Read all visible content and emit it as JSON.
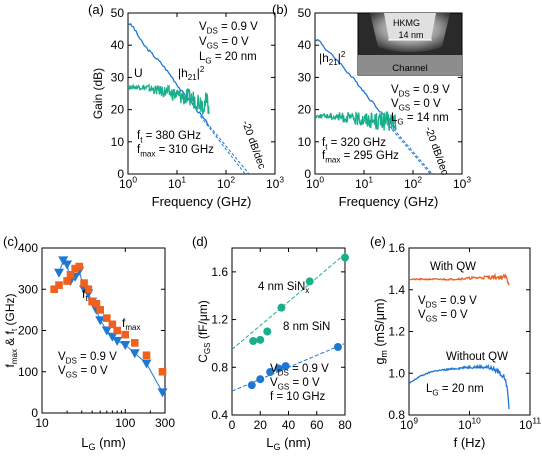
{
  "chart_data": [
    {
      "id": "a",
      "type": "line",
      "panel_label": "(a)",
      "xlabel": "Frequency (GHz)",
      "ylabel": "Gain (dB)",
      "xscale": "log",
      "xlim": [
        1,
        1000
      ],
      "ylim": [
        0,
        50
      ],
      "xticks": [
        1,
        10,
        100,
        1000
      ],
      "xtick_labels": [
        "10",
        "10",
        "10",
        "10"
      ],
      "xtick_exps": [
        "0",
        "1",
        "2",
        "3"
      ],
      "yticks": [
        0,
        10,
        20,
        30,
        40,
        50
      ],
      "ytick_labels": [
        "0",
        "10",
        "20",
        "30",
        "40",
        "50"
      ],
      "legend_lines": [
        {
          "main": "V",
          "sub": "DS",
          "rest": " = 0.9 V"
        },
        {
          "main": "V",
          "sub": "GS",
          "rest": " = 0 V"
        },
        {
          "main": "L",
          "sub": "G",
          "rest": " = 20 nm"
        }
      ],
      "metric_lines": [
        {
          "main": "f",
          "sub": "t",
          "rest": " = 380 GHz"
        },
        {
          "main": "f",
          "sub": "max",
          "rest": " = 310 GHz"
        }
      ],
      "annotations": {
        "U": "U",
        "h21_main": "|h",
        "h21_sub": "21",
        "h21_tail": "|",
        "h21_sup": "2",
        "slope": "-20 dB/dec"
      },
      "series": [
        {
          "name": "|h21|2",
          "color": "#1f77d4",
          "noisy": false,
          "x": [
            1.0,
            1.3,
            1.6,
            2,
            3,
            5,
            8,
            12,
            20,
            30,
            45
          ],
          "y": [
            47.0,
            45.5,
            43,
            40.5,
            37.5,
            34,
            30,
            26,
            22,
            18.5,
            15
          ]
        },
        {
          "name": "U",
          "color": "#1aaf8b",
          "noisy": true,
          "x": [
            1.0,
            2,
            4,
            8,
            12,
            18,
            25,
            35,
            45
          ],
          "y": [
            27,
            27,
            26,
            25,
            24,
            23.5,
            23,
            22,
            22
          ]
        }
      ],
      "extrap": [
        {
          "x": [
            40,
            380
          ],
          "y": [
            16,
            -2
          ]
        },
        {
          "x": [
            30,
            310
          ],
          "y": [
            18,
            -2
          ]
        }
      ]
    },
    {
      "id": "b",
      "type": "line",
      "panel_label": "(b)",
      "xlabel": "Frequency (GHz)",
      "ylabel": "",
      "xscale": "log",
      "xlim": [
        1,
        1000
      ],
      "ylim": [
        0,
        50
      ],
      "xticks": [
        1,
        10,
        100,
        1000
      ],
      "xtick_labels": [
        "10",
        "10",
        "10",
        "10"
      ],
      "xtick_exps": [
        "0",
        "1",
        "2",
        "3"
      ],
      "yticks": [
        0,
        10,
        20,
        30,
        40,
        50
      ],
      "ytick_labels": [
        "0",
        "10",
        "20",
        "30",
        "40",
        "50"
      ],
      "legend_lines": [
        {
          "main": "V",
          "sub": "DS",
          "rest": " = 0.9 V"
        },
        {
          "main": "V",
          "sub": "GS",
          "rest": " = 0 V"
        },
        {
          "main": "L",
          "sub": "G",
          "rest": " = 14 nm"
        }
      ],
      "metric_lines": [
        {
          "main": "f",
          "sub": "t",
          "rest": " = 320 GHz"
        },
        {
          "main": "f",
          "sub": "max",
          "rest": " = 295 GHz"
        }
      ],
      "annotations": {
        "h21_main": "|h",
        "h21_sub": "21",
        "h21_tail": "|",
        "h21_sup": "2",
        "slope": "-20 dB/dec"
      },
      "inset": {
        "hkmg": "HKMG",
        "dim": "14 nm",
        "channel": "Channel"
      },
      "series": [
        {
          "name": "|h21|2",
          "color": "#1f77d4",
          "noisy": false,
          "x": [
            1.0,
            1.3,
            1.6,
            2,
            3,
            5,
            8,
            12,
            20,
            30,
            45
          ],
          "y": [
            42,
            41,
            39,
            37.5,
            35,
            31,
            27.5,
            24,
            20,
            17,
            14
          ]
        },
        {
          "name": "U",
          "color": "#1aaf8b",
          "noisy": true,
          "x": [
            1.0,
            2,
            4,
            8,
            12,
            18,
            25,
            35,
            45
          ],
          "y": [
            18,
            18,
            17.5,
            17,
            17,
            16.5,
            16.5,
            16,
            17
          ]
        }
      ],
      "extrap": [
        {
          "x": [
            40,
            320
          ],
          "y": [
            14,
            -2
          ]
        },
        {
          "x": [
            32,
            295
          ],
          "y": [
            15,
            -2
          ]
        }
      ]
    },
    {
      "id": "c",
      "type": "scatter",
      "panel_label": "(c)",
      "xlabel_main": "L",
      "xlabel_sub": "G",
      "xlabel_rest": " (nm)",
      "ylabel_parts": [
        {
          "main": "f",
          "sub": "max"
        },
        {
          "main": " & f",
          "sub": "t"
        },
        {
          "main": " (GHz)",
          "sub": ""
        }
      ],
      "xscale": "log",
      "xlim": [
        10,
        300
      ],
      "ylim": [
        0,
        400
      ],
      "xticks": [
        10,
        100,
        300
      ],
      "xtick_labels": [
        "10",
        "100",
        "300"
      ],
      "yticks": [
        0,
        100,
        200,
        300,
        400
      ],
      "ytick_labels": [
        "0",
        "100",
        "200",
        "300",
        "400"
      ],
      "legend_lines": [
        {
          "main": "V",
          "sub": "DS",
          "rest": " = 0.9 V"
        },
        {
          "main": "V",
          "sub": "GS",
          "rest": " = 0 V"
        }
      ],
      "series": [
        {
          "name": "f_t",
          "marker": "triangle",
          "color": "#1f77d4",
          "label_main": "f",
          "label_sub": "t",
          "x": [
            16,
            18,
            20,
            22,
            25,
            28,
            32,
            36,
            40,
            45,
            50,
            60,
            70,
            80,
            100,
            130,
            180,
            280
          ],
          "y": [
            340,
            370,
            360,
            320,
            330,
            345,
            300,
            290,
            270,
            250,
            225,
            200,
            185,
            175,
            165,
            145,
            120,
            50
          ]
        },
        {
          "name": "f_max",
          "marker": "square",
          "color": "#f0601e",
          "label_main": "f",
          "label_sub": "max",
          "x": [
            14,
            16,
            20,
            22,
            25,
            28,
            32,
            36,
            40,
            45,
            50,
            60,
            70,
            80,
            100,
            130,
            180,
            280
          ],
          "y": [
            300,
            310,
            320,
            335,
            350,
            355,
            315,
            300,
            270,
            265,
            250,
            230,
            215,
            200,
            190,
            170,
            140,
            100
          ]
        }
      ]
    },
    {
      "id": "d",
      "type": "scatter",
      "panel_label": "(d)",
      "xlabel_main": "L",
      "xlabel_sub": "G",
      "xlabel_rest": " (nm)",
      "ylabel_main": "C",
      "ylabel_sub": "GS",
      "ylabel_rest": " (fF/μm)",
      "xlim": [
        0,
        80
      ],
      "ylim": [
        0.4,
        1.8
      ],
      "xticks": [
        0,
        20,
        40,
        60,
        80
      ],
      "xtick_labels": [
        "0",
        "20",
        "40",
        "60",
        "80"
      ],
      "yticks": [
        0.4,
        0.8,
        1.2,
        1.6
      ],
      "ytick_labels": [
        "0.4",
        "0.8",
        "1.2",
        "1.6"
      ],
      "legend_lines": [
        {
          "main": "V",
          "sub": "DS",
          "rest": " = 0.9 V"
        },
        {
          "main": "V",
          "sub": "GS",
          "rest": " = 0 V"
        },
        {
          "main": "f = 10 GHz",
          "sub": "",
          "rest": ""
        }
      ],
      "series": [
        {
          "name": "4 nm SiNx",
          "color": "#1aaf8b",
          "label_main": "4 nm SiN",
          "label_sub": "x",
          "x": [
            15,
            20,
            25,
            35,
            55,
            80
          ],
          "y": [
            1.02,
            1.03,
            1.1,
            1.3,
            1.52,
            1.72
          ],
          "fit": [
            [
              0,
              0.95
            ],
            [
              80,
              1.75
            ]
          ]
        },
        {
          "name": "8 nm SiN",
          "color": "#1f77d4",
          "label_main": "8 nm SiN",
          "label_sub": "",
          "x": [
            14,
            20,
            27,
            33,
            38,
            75
          ],
          "y": [
            0.65,
            0.7,
            0.76,
            0.79,
            0.81,
            0.97
          ],
          "fit": [
            [
              0,
              0.6
            ],
            [
              80,
              1.0
            ]
          ]
        }
      ]
    },
    {
      "id": "e",
      "type": "line",
      "panel_label": "(e)",
      "xlabel": "f (Hz)",
      "ylabel_main": "g",
      "ylabel_sub": "m",
      "ylabel_rest": " (mS/μm)",
      "xscale": "log",
      "xlim": [
        1000000000,
        100000000000
      ],
      "ylim": [
        0.8,
        1.6
      ],
      "xticks": [
        1000000000,
        10000000000,
        100000000000
      ],
      "xtick_labels": [
        "10",
        "10",
        "10"
      ],
      "xtick_exps": [
        "9",
        "10",
        "11"
      ],
      "yticks": [
        0.8,
        1.0,
        1.2,
        1.4,
        1.6
      ],
      "ytick_labels": [
        "0.8",
        "1.0",
        "1.2",
        "1.4",
        "1.6"
      ],
      "legend_lines": [
        {
          "main": "V",
          "sub": "DS",
          "rest": " = 0.9 V"
        },
        {
          "main": "V",
          "sub": "GS",
          "rest": " = 0 V"
        }
      ],
      "lg_line": {
        "main": "L",
        "sub": "G",
        "rest": " = 20 nm"
      },
      "series": [
        {
          "name": "With QW",
          "color": "#f0601e",
          "noisy": true,
          "x": [
            1000000000,
            2000000000,
            5000000000,
            10000000000,
            20000000000,
            40000000000,
            45000000000
          ],
          "y": [
            1.45,
            1.45,
            1.45,
            1.455,
            1.46,
            1.46,
            1.43
          ]
        },
        {
          "name": "Without QW",
          "color": "#1f77d4",
          "noisy": true,
          "x": [
            1000000000,
            1500000000,
            2500000000,
            5000000000,
            10000000000,
            20000000000,
            30000000000,
            40000000000,
            45000000000
          ],
          "y": [
            0.95,
            0.985,
            1.01,
            1.02,
            1.03,
            1.03,
            1.01,
            0.97,
            0.84
          ]
        }
      ]
    }
  ]
}
